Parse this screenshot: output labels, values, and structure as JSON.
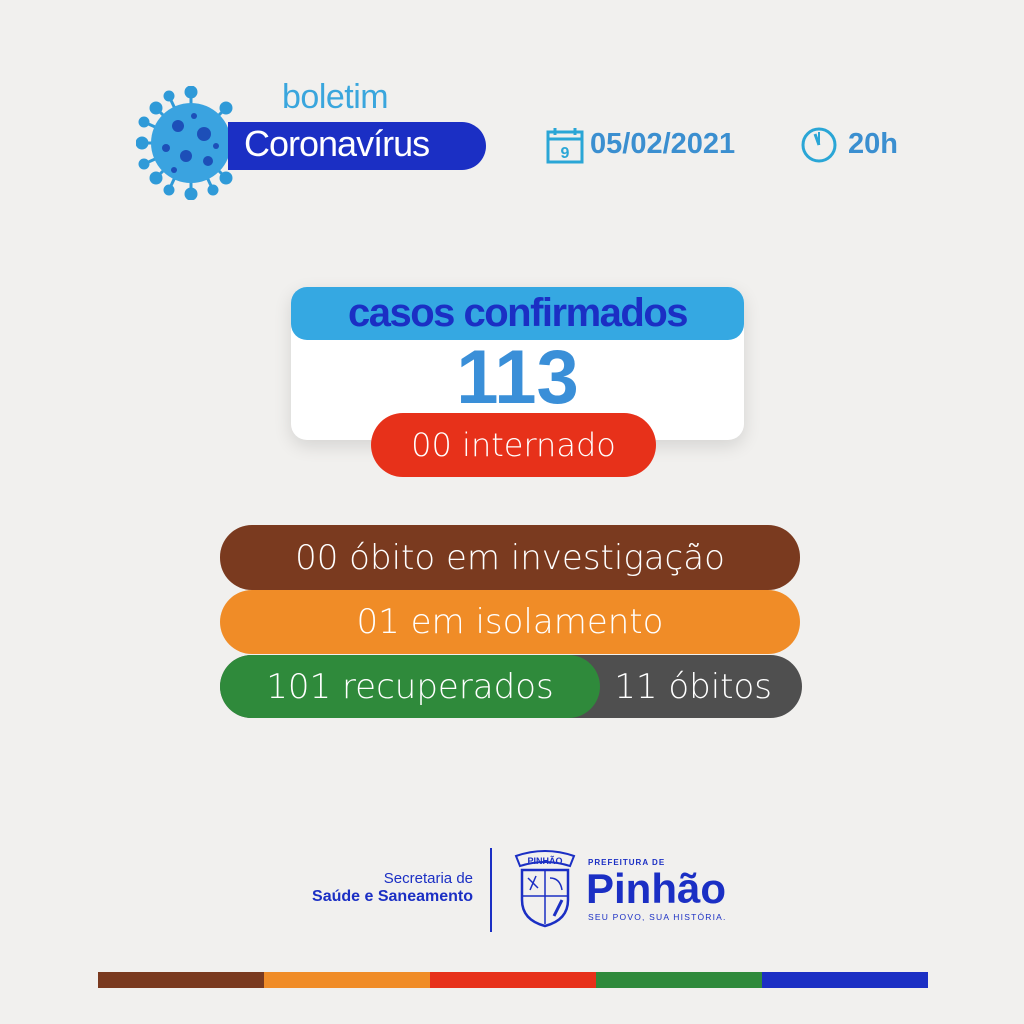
{
  "header": {
    "logo_top": "boletim",
    "logo_main": "Coronavírus",
    "date": "05/02/2021",
    "time": "20h",
    "icons": {
      "logo": "virus-icon",
      "date": "calendar-icon",
      "time": "clock-icon"
    }
  },
  "cases": {
    "label": "casos confirmados",
    "value": "113",
    "hospitalized": "00 internado"
  },
  "stats": {
    "deaths_investigation": "00 óbito em investigação",
    "isolation": "01 em isolamento",
    "recovered": "101 recuperados",
    "deaths": "11 óbitos"
  },
  "footer": {
    "secretaria_line1": "Secretaria de",
    "secretaria_line2": "Saúde e Saneamento",
    "crest_text": "PINHÃO",
    "prefeitura": "PREFEITURA DE",
    "city": "Pinhão",
    "tagline": "SEU POVO, SUA HISTÓRIA."
  },
  "colors": {
    "cyan": "#35a8e2",
    "dark_blue": "#1b2fc4",
    "red": "#e7311a",
    "brown": "#7a3a1f",
    "orange": "#f08c27",
    "green": "#2f8a3b",
    "gray": "#4f4f4f",
    "bottom_bar": [
      "#7a3a1f",
      "#f08c27",
      "#e7311a",
      "#2f8a3b",
      "#1b2fc4"
    ]
  }
}
